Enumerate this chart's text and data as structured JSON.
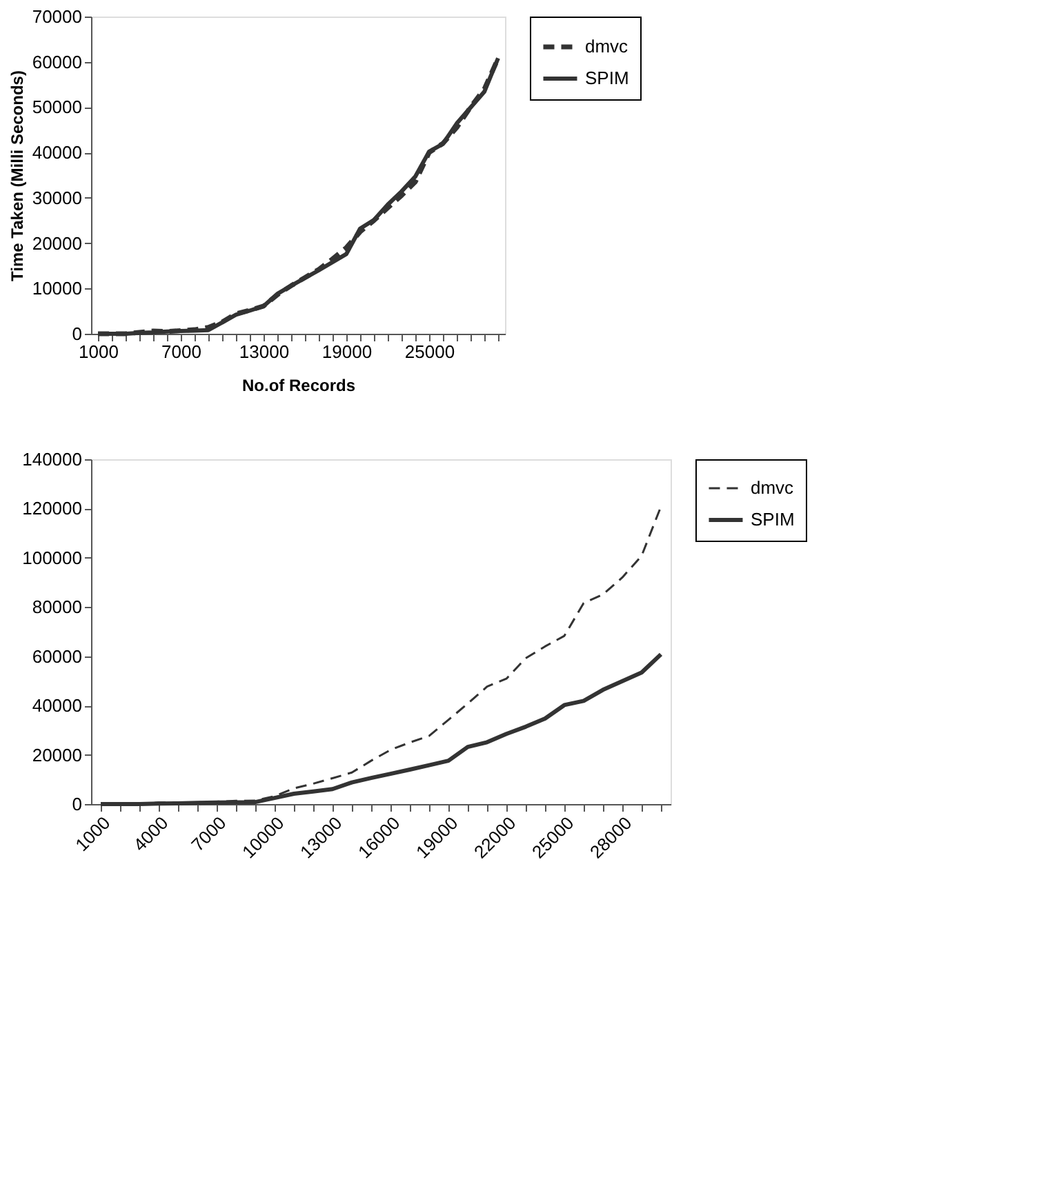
{
  "chart_data": [
    {
      "type": "line",
      "xlabel": "No.of Records",
      "ylabel": "Time Taken (Milli Seconds)",
      "categories": [
        "1000",
        null,
        null,
        null,
        null,
        null,
        "7000",
        null,
        null,
        null,
        null,
        null,
        "13000",
        null,
        null,
        null,
        null,
        null,
        "19000",
        null,
        null,
        null,
        null,
        null,
        "25000",
        null,
        null,
        null,
        null,
        null
      ],
      "series": [
        {
          "name": "dmvc",
          "color": "#333333",
          "line_style": "dashed",
          "values": [
            0,
            0,
            0,
            300,
            600,
            500,
            700,
            900,
            1400,
            2600,
            4400,
            5200,
            6100,
            8600,
            10600,
            12400,
            14200,
            16500,
            19000,
            22500,
            25000,
            27800,
            30500,
            33500,
            40000,
            42000,
            45500,
            50000,
            54000,
            60800
          ]
        },
        {
          "name": "SPIM",
          "color": "#333333",
          "line_style": "solid",
          "values": [
            0,
            0,
            0,
            200,
            300,
            500,
            600,
            700,
            800,
            2500,
            4200,
            5100,
            6100,
            8800,
            10600,
            12300,
            14000,
            15800,
            17600,
            23200,
            25100,
            28500,
            31400,
            34700,
            40200,
            41900,
            46400,
            49900,
            53400,
            60800
          ]
        }
      ],
      "ylim": [
        0,
        70000
      ],
      "yticks": [
        0,
        10000,
        20000,
        30000,
        40000,
        50000,
        60000,
        70000
      ],
      "grid": false,
      "legend": "right"
    },
    {
      "type": "line",
      "categories": [
        "1000",
        null,
        null,
        "4000",
        null,
        null,
        "7000",
        null,
        null,
        "10000",
        null,
        null,
        "13000",
        null,
        null,
        "16000",
        null,
        null,
        "19000",
        null,
        null,
        "22000",
        null,
        null,
        "25000",
        null,
        null,
        "28000",
        null,
        null
      ],
      "series": [
        {
          "name": "dmvc",
          "color": "#333333",
          "line_style": "dashed",
          "values": [
            0,
            0,
            0,
            600,
            600,
            700,
            1000,
            1300,
            1400,
            3200,
            6400,
            8300,
            10500,
            12800,
            17600,
            22000,
            25000,
            27700,
            34200,
            40800,
            47700,
            50900,
            59200,
            64000,
            68300,
            81600,
            85100,
            92000,
            100800,
            120800
          ]
        },
        {
          "name": "SPIM",
          "color": "#333333",
          "line_style": "solid",
          "values": [
            0,
            0,
            0,
            200,
            300,
            500,
            600,
            700,
            800,
            2500,
            4200,
            5100,
            6100,
            8800,
            10600,
            12300,
            14000,
            15800,
            17600,
            23200,
            25100,
            28500,
            31400,
            34700,
            40200,
            41900,
            46400,
            49900,
            53400,
            60800
          ]
        }
      ],
      "ylim": [
        0,
        140000
      ],
      "yticks": [
        0,
        20000,
        40000,
        60000,
        80000,
        100000,
        120000,
        140000
      ],
      "grid": false,
      "legend": "right"
    }
  ]
}
